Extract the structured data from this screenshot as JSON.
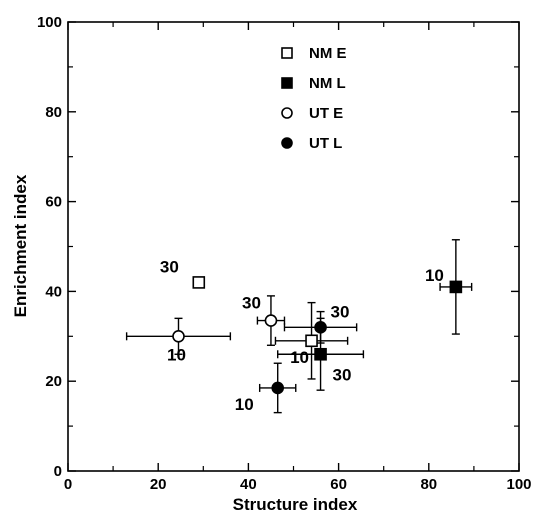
{
  "chart_data": {
    "type": "scatter",
    "xlabel": "Structure index",
    "ylabel": "Enrichment index",
    "xlim": [
      0,
      100
    ],
    "ylim": [
      0,
      100
    ],
    "x_ticks": [
      0,
      20,
      40,
      60,
      80,
      100
    ],
    "y_ticks": [
      0,
      20,
      40,
      60,
      80,
      100
    ],
    "grid": false,
    "legend_position": "top-center",
    "series": [
      {
        "name": "NM E",
        "marker": "square-open",
        "points": [
          {
            "x": 29,
            "y": 42,
            "xerr": 0,
            "yerr": 0,
            "label": "30"
          },
          {
            "x": 54,
            "y": 29,
            "xerr": 8,
            "yerr": 8.5,
            "label": "10"
          }
        ]
      },
      {
        "name": "NM L",
        "marker": "square-filled",
        "points": [
          {
            "x": 56,
            "y": 26,
            "xerr": 9.5,
            "yerr": 8,
            "label": "30"
          },
          {
            "x": 86,
            "y": 41,
            "xerr": 3.5,
            "yerr": 10.5,
            "label": "10"
          }
        ]
      },
      {
        "name": "UT E",
        "marker": "circle-open",
        "points": [
          {
            "x": 24.5,
            "y": 30,
            "xerr": 11.5,
            "yerr": 4,
            "label": "10"
          },
          {
            "x": 45,
            "y": 33.5,
            "xerr": 3,
            "yerr": 5.5,
            "label": "30"
          }
        ]
      },
      {
        "name": "UT L",
        "marker": "circle-filled",
        "points": [
          {
            "x": 46.5,
            "y": 18.5,
            "xerr": 4,
            "yerr": 5.5,
            "label": "10"
          },
          {
            "x": 56,
            "y": 32,
            "xerr": 8,
            "yerr": 3.5,
            "label": "30"
          }
        ]
      }
    ]
  }
}
